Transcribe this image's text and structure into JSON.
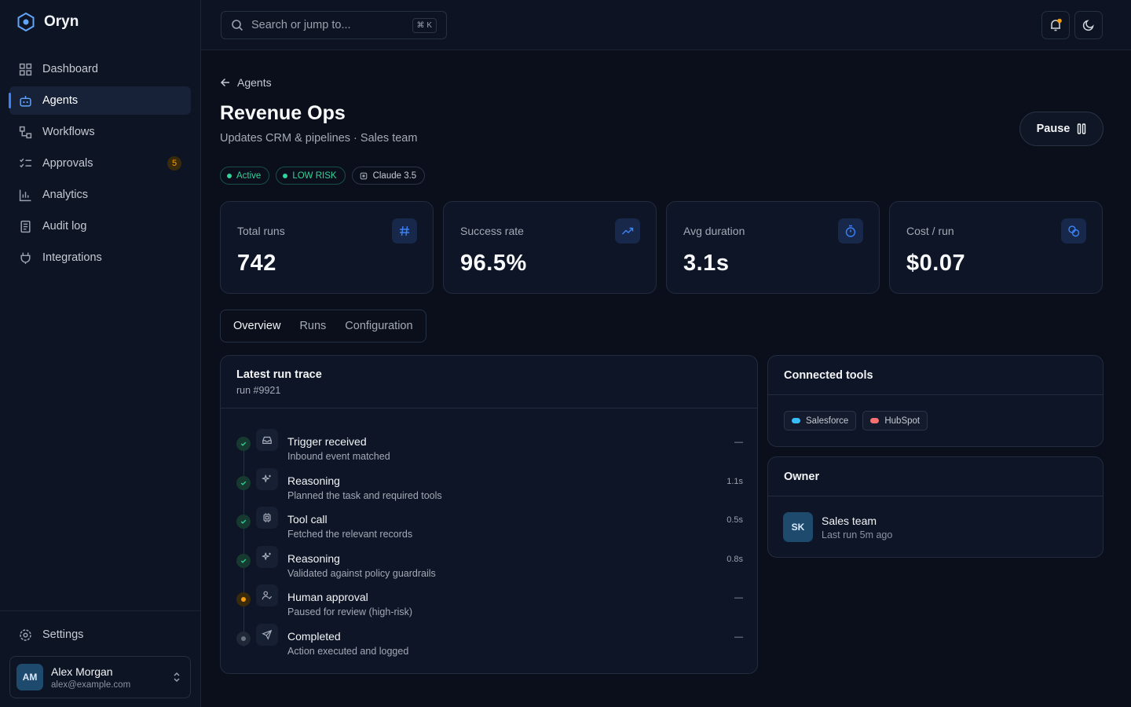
{
  "brand": "Oryn",
  "nav": [
    {
      "label": "Dashboard"
    },
    {
      "label": "Agents",
      "active": true
    },
    {
      "label": "Workflows"
    },
    {
      "label": "Approvals",
      "badge": "5"
    },
    {
      "label": "Analytics"
    },
    {
      "label": "Audit log"
    },
    {
      "label": "Integrations"
    }
  ],
  "settings": "Settings",
  "user": {
    "initials": "AM",
    "name": "Alex Morgan",
    "email": "alex@example.com"
  },
  "search": {
    "placeholder": "Search or jump to...",
    "shortcut": "⌘ K"
  },
  "breadcrumb": "Agents",
  "page": {
    "title": "Revenue Ops",
    "subtitle": "Updates CRM & pipelines · Sales team",
    "action": "Pause"
  },
  "tags": [
    {
      "label": "Active",
      "color": "#34d399"
    },
    {
      "label": "LOW RISK",
      "color": "#34d399"
    },
    {
      "label": "Claude 3.5"
    }
  ],
  "stats": [
    {
      "label": "Total runs",
      "value": "742"
    },
    {
      "label": "Success rate",
      "value": "96.5%"
    },
    {
      "label": "Avg duration",
      "value": "3.1s"
    },
    {
      "label": "Cost / run",
      "value": "$0.07"
    }
  ],
  "tabs": [
    {
      "label": "Overview",
      "active": true
    },
    {
      "label": "Runs"
    },
    {
      "label": "Configuration"
    }
  ],
  "trace": {
    "title": "Latest run trace",
    "subtitle": "run #9921",
    "steps": [
      {
        "title": "Trigger received",
        "detail": "Inbound event matched",
        "time": "—",
        "status": "done"
      },
      {
        "title": "Reasoning",
        "detail": "Planned the task and required tools",
        "time": "1.1s",
        "status": "done"
      },
      {
        "title": "Tool call",
        "detail": "Fetched the relevant records",
        "time": "0.5s",
        "status": "done"
      },
      {
        "title": "Reasoning",
        "detail": "Validated against policy guardrails",
        "time": "0.8s",
        "status": "done"
      },
      {
        "title": "Human approval",
        "detail": "Paused for review (high-risk)",
        "time": "—",
        "status": "waiting"
      },
      {
        "title": "Completed",
        "detail": "Action executed and logged",
        "time": "—",
        "status": "pending"
      }
    ]
  },
  "tools": {
    "title": "Connected tools",
    "items": [
      {
        "label": "Salesforce",
        "color": "#38bdf8"
      },
      {
        "label": "HubSpot",
        "color": "#f87171"
      }
    ]
  },
  "owner": {
    "title": "Owner",
    "initials": "SK",
    "name": "Sales team",
    "detail": "Last run 5m ago"
  }
}
